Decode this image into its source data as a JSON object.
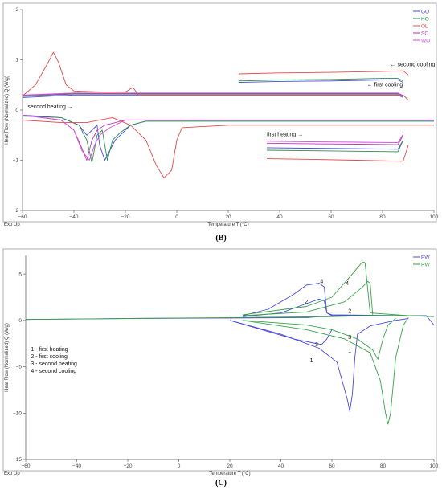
{
  "chart_data": [
    {
      "id": "B",
      "type": "line",
      "panel_label": "(B)",
      "xlabel": "Temperature T (°C)",
      "ylabel": "Heat Flow (Normalized) Q (W/g)",
      "corner_label": "Exo Up",
      "xlim": [
        -60,
        100
      ],
      "ylim": [
        -2,
        2
      ],
      "xticks": [
        -60,
        -40,
        -20,
        0,
        20,
        40,
        60,
        80,
        100
      ],
      "yticks": [
        2,
        1,
        0,
        -1,
        -2
      ],
      "legend_position": "top-right",
      "annotations": [
        {
          "text": "second cooling",
          "arrow": "←",
          "x": 83,
          "y": 0.87
        },
        {
          "text": "first cooling",
          "arrow": "←",
          "x": 74,
          "y": 0.47
        },
        {
          "text": "second heating",
          "arrow": "→",
          "x": -58,
          "y": 0.03
        },
        {
          "text": "first heating",
          "arrow": "→",
          "x": 35,
          "y": -0.52
        }
      ],
      "series": [
        {
          "name": "GO",
          "color": "#4a4ad8",
          "segments": [
            {
              "x": [
                24,
                40,
                60,
                80,
                86,
                88
              ],
              "y": [
                0.55,
                0.57,
                0.58,
                0.6,
                0.6,
                0.55
              ]
            },
            {
              "x": [
                -60,
                -40,
                -20,
                0,
                20,
                40,
                60,
                80,
                86,
                88
              ],
              "y": [
                0.25,
                0.3,
                0.3,
                0.3,
                0.3,
                0.3,
                0.3,
                0.3,
                0.3,
                0.25
              ]
            },
            {
              "x": [
                -60,
                -45,
                -38,
                -35,
                -33,
                -31,
                -30,
                -28,
                -26,
                -24,
                -22,
                -18,
                -12,
                0,
                20,
                40,
                60,
                80,
                95,
                100
              ],
              "y": [
                -0.1,
                -0.15,
                -0.3,
                -0.5,
                -0.4,
                -0.3,
                -0.7,
                -1.0,
                -0.8,
                -0.6,
                -0.5,
                -0.3,
                -0.22,
                -0.22,
                -0.22,
                -0.22,
                -0.22,
                -0.22,
                -0.22,
                -0.22
              ]
            },
            {
              "x": [
                35,
                50,
                70,
                86,
                88
              ],
              "y": [
                -0.75,
                -0.76,
                -0.77,
                -0.78,
                -0.6
              ]
            }
          ]
        },
        {
          "name": "HO",
          "color": "#2c8c4e",
          "segments": [
            {
              "x": [
                24,
                40,
                60,
                80,
                86,
                88
              ],
              "y": [
                0.58,
                0.6,
                0.61,
                0.63,
                0.63,
                0.58
              ]
            },
            {
              "x": [
                -60,
                -40,
                -20,
                0,
                20,
                40,
                60,
                80,
                86,
                88
              ],
              "y": [
                0.27,
                0.32,
                0.32,
                0.32,
                0.32,
                0.32,
                0.32,
                0.32,
                0.32,
                0.27
              ]
            },
            {
              "x": [
                -60,
                -45,
                -38,
                -35,
                -33,
                -31,
                -29,
                -27,
                -25,
                -22,
                -18,
                -12,
                0,
                20,
                40,
                60,
                80,
                95,
                100
              ],
              "y": [
                -0.12,
                -0.15,
                -0.3,
                -0.6,
                -1.05,
                -0.5,
                -0.4,
                -1.0,
                -0.6,
                -0.45,
                -0.3,
                -0.22,
                -0.22,
                -0.22,
                -0.22,
                -0.22,
                -0.22,
                -0.22,
                -0.22
              ]
            },
            {
              "x": [
                35,
                50,
                70,
                86,
                88
              ],
              "y": [
                -0.8,
                -0.81,
                -0.82,
                -0.83,
                -0.6
              ]
            }
          ]
        },
        {
          "name": "OL",
          "color": "#e04a4a",
          "segments": [
            {
              "x": [
                24,
                40,
                60,
                80,
                88,
                90
              ],
              "y": [
                0.72,
                0.74,
                0.75,
                0.77,
                0.78,
                0.7
              ]
            },
            {
              "x": [
                -60,
                -55,
                -50,
                -48,
                -46,
                -43,
                -40,
                -30,
                -20,
                -17,
                -15,
                -12,
                0,
                20,
                40,
                60,
                80,
                88,
                90
              ],
              "y": [
                0.28,
                0.5,
                0.95,
                1.15,
                0.95,
                0.5,
                0.38,
                0.36,
                0.36,
                0.45,
                0.3,
                0.3,
                0.3,
                0.3,
                0.3,
                0.3,
                0.3,
                0.3,
                0.2
              ]
            },
            {
              "x": [
                -60,
                -45,
                -35,
                -25,
                -18,
                -12,
                -8,
                -5,
                -2,
                0,
                2,
                20,
                40,
                60,
                80,
                95,
                100
              ],
              "y": [
                -0.2,
                -0.25,
                -0.25,
                -0.15,
                -0.3,
                -0.6,
                -1.1,
                -1.35,
                -1.2,
                -0.6,
                -0.35,
                -0.3,
                -0.3,
                -0.3,
                -0.3,
                -0.3,
                -0.3
              ]
            },
            {
              "x": [
                35,
                50,
                70,
                88,
                90
              ],
              "y": [
                -0.97,
                -0.98,
                -1.0,
                -1.02,
                -0.7
              ]
            }
          ]
        },
        {
          "name": "SO",
          "color": "#b33ab3",
          "segments": [
            {
              "x": [
                -60,
                -40,
                -20,
                0,
                20,
                40,
                60,
                80,
                86,
                88
              ],
              "y": [
                0.29,
                0.33,
                0.33,
                0.33,
                0.33,
                0.33,
                0.33,
                0.33,
                0.33,
                0.28
              ]
            },
            {
              "x": [
                -60,
                -45,
                -40,
                -37,
                -35,
                -33,
                -31,
                -28,
                -20,
                0,
                20,
                40,
                60,
                80,
                95,
                100
              ],
              "y": [
                -0.1,
                -0.2,
                -0.4,
                -0.75,
                -1.0,
                -0.6,
                -0.4,
                -0.3,
                -0.2,
                -0.2,
                -0.2,
                -0.2,
                -0.2,
                -0.2,
                -0.2,
                -0.2
              ]
            },
            {
              "x": [
                35,
                50,
                70,
                86,
                88
              ],
              "y": [
                -0.66,
                -0.67,
                -0.68,
                -0.69,
                -0.5
              ]
            }
          ]
        },
        {
          "name": "WO",
          "color": "#d94ae0",
          "segments": [
            {
              "x": [
                -60,
                -40,
                -20,
                0,
                20,
                40,
                60,
                80,
                86,
                88
              ],
              "y": [
                0.3,
                0.34,
                0.34,
                0.34,
                0.34,
                0.34,
                0.34,
                0.34,
                0.34,
                0.29
              ]
            },
            {
              "x": [
                -60,
                -45,
                -40,
                -37,
                -34,
                -32,
                -30,
                -26,
                -20,
                0,
                20,
                40,
                60,
                80,
                95,
                100
              ],
              "y": [
                -0.1,
                -0.2,
                -0.4,
                -0.8,
                -1.0,
                -0.7,
                -0.5,
                -0.35,
                -0.2,
                -0.2,
                -0.2,
                -0.2,
                -0.2,
                -0.2,
                -0.2,
                -0.2
              ]
            },
            {
              "x": [
                35,
                50,
                70,
                86,
                88
              ],
              "y": [
                -0.62,
                -0.63,
                -0.64,
                -0.65,
                -0.48
              ]
            }
          ]
        }
      ]
    },
    {
      "id": "C",
      "type": "line",
      "panel_label": "(C)",
      "xlabel": "Temperature T (°C)",
      "ylabel": "Heat Flow (Normalized) Q (W/g)",
      "corner_label": "Exo Up",
      "xlim": [
        -60,
        100
      ],
      "ylim": [
        -15,
        7
      ],
      "xticks": [
        -60,
        -40,
        -20,
        0,
        20,
        40,
        60,
        80,
        100
      ],
      "yticks": [
        5,
        0,
        -5,
        -10,
        -15
      ],
      "legend_position": "top-right",
      "legend_box": [
        "1 - first heating",
        "2 - first cooling",
        "3 - second heating",
        "4 - second cooling"
      ],
      "curve_numbers": [
        {
          "text": "4",
          "x": 56,
          "y": 4.0
        },
        {
          "text": "2",
          "x": 50,
          "y": 1.8
        },
        {
          "text": "3",
          "x": 54,
          "y": -2.8
        },
        {
          "text": "1",
          "x": 52,
          "y": -4.5
        },
        {
          "text": "4",
          "x": 66,
          "y": 3.8
        },
        {
          "text": "2",
          "x": 67,
          "y": 0.8
        },
        {
          "text": "3",
          "x": 67,
          "y": -2.0
        },
        {
          "text": "1",
          "x": 67,
          "y": -3.5
        }
      ],
      "series": [
        {
          "name": "BW",
          "color": "#4a4ad8",
          "segments": [
            {
              "x": [
                -60,
                -20,
                20,
                50,
                55,
                58,
                60,
                90,
                97,
                100
              ],
              "y": [
                0.1,
                0.2,
                0.25,
                0.3,
                0.4,
                0.4,
                0.5,
                0.5,
                0.5,
                -0.5
              ]
            },
            {
              "x": [
                25,
                35,
                45,
                50,
                55,
                57,
                58,
                60,
                90
              ],
              "y": [
                0.5,
                1.2,
                2.8,
                3.8,
                4.0,
                3.6,
                0.8,
                0.6,
                0.5
              ]
            },
            {
              "x": [
                25,
                40,
                50,
                55,
                57,
                58,
                60
              ],
              "y": [
                0.4,
                0.8,
                1.8,
                2.3,
                2.1,
                0.8,
                0.5
              ]
            },
            {
              "x": [
                20,
                35,
                45,
                52,
                56,
                58,
                60
              ],
              "y": [
                0.0,
                -1.2,
                -2.0,
                -2.4,
                -2.6,
                -2.0,
                -1.0
              ]
            },
            {
              "x": [
                20,
                40,
                55,
                62,
                64,
                66,
                67,
                68,
                69,
                70,
                75,
                85,
                90
              ],
              "y": [
                0.0,
                -1.5,
                -3.0,
                -4.5,
                -6.5,
                -8.5,
                -9.8,
                -8.0,
                -4.0,
                -1.5,
                -0.6,
                0.0,
                0.2
              ]
            }
          ]
        },
        {
          "name": "RW",
          "color": "#3aa14a",
          "segments": [
            {
              "x": [
                -60,
                -20,
                20,
                60,
                75,
                90,
                100
              ],
              "y": [
                0.1,
                0.2,
                0.3,
                0.4,
                0.5,
                0.5,
                0.4
              ]
            },
            {
              "x": [
                25,
                50,
                60,
                68,
                72,
                73,
                74,
                75,
                90
              ],
              "y": [
                0.6,
                1.5,
                2.5,
                5.0,
                6.3,
                6.2,
                3.5,
                0.8,
                0.5
              ]
            },
            {
              "x": [
                25,
                50,
                65,
                72,
                74,
                75,
                76
              ],
              "y": [
                0.5,
                0.9,
                2.0,
                3.6,
                4.2,
                4.0,
                0.6
              ]
            },
            {
              "x": [
                25,
                50,
                60,
                70,
                76,
                78,
                80,
                82,
                85
              ],
              "y": [
                0.0,
                -0.5,
                -1.0,
                -2.0,
                -3.2,
                -4.2,
                -2.0,
                -0.5,
                0.2
              ]
            },
            {
              "x": [
                25,
                50,
                65,
                75,
                79,
                81,
                82,
                83,
                85,
                88,
                90
              ],
              "y": [
                0.0,
                -1.0,
                -2.0,
                -3.5,
                -6.5,
                -10.0,
                -11.2,
                -10.0,
                -4.0,
                -0.5,
                0.3
              ]
            }
          ]
        }
      ]
    }
  ]
}
